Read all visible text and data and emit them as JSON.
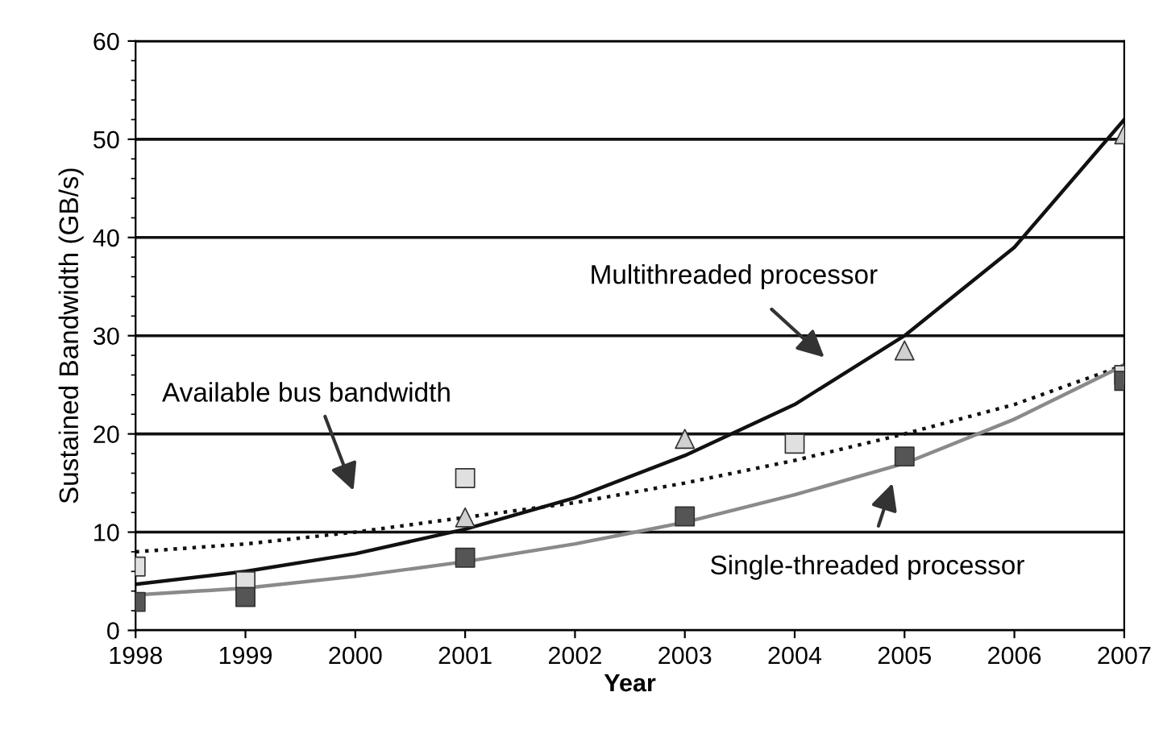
{
  "chart_data": {
    "type": "scatter",
    "xlabel": "Year",
    "ylabel": "Sustained Bandwidth (GB/s)",
    "xlim": [
      1998,
      2007
    ],
    "xticks": [
      1998,
      1999,
      2000,
      2001,
      2002,
      2003,
      2004,
      2005,
      2006,
      2007
    ],
    "ylim": [
      0,
      60
    ],
    "yticks": [
      0,
      10,
      20,
      30,
      40,
      50,
      60
    ],
    "grid": "y",
    "series": [
      {
        "marker": "triangle",
        "color": "#d0d0d0",
        "x": [
          2001,
          2003,
          2005,
          2007
        ],
        "values": [
          11.5,
          19.5,
          28.5,
          50.5
        ]
      },
      {
        "marker": "square",
        "color": "#e0e0e0",
        "x": [
          1998,
          1999,
          2001,
          2004,
          2007
        ],
        "values": [
          6.5,
          5,
          15.5,
          19,
          26
        ]
      },
      {
        "marker": "square",
        "color": "#555555",
        "x": [
          1998,
          1999,
          2001,
          2003,
          2005,
          2007
        ],
        "values": [
          2.9,
          3.4,
          7.4,
          11.6,
          17.7,
          25.4
        ]
      },
      {
        "type": "line",
        "line_style": "solid",
        "color": "#111111",
        "x": [
          1998,
          1999,
          2000,
          2001,
          2002,
          2003,
          2004,
          2005,
          2006,
          2007
        ],
        "values": [
          4.7,
          6,
          7.8,
          10.3,
          13.5,
          17.8,
          23,
          30,
          39,
          52
        ]
      },
      {
        "type": "line",
        "line_style": "dotted",
        "color": "#111111",
        "x": [
          1998,
          1999,
          2000,
          2001,
          2002,
          2003,
          2004,
          2005,
          2006,
          2007
        ],
        "values": [
          8,
          8.8,
          10,
          11.5,
          13,
          15,
          17.3,
          20,
          23,
          27
        ]
      },
      {
        "type": "line",
        "line_style": "solid",
        "color": "#8a8a8a",
        "x": [
          1998,
          1999,
          2000,
          2001,
          2002,
          2003,
          2004,
          2005,
          2006,
          2007
        ],
        "values": [
          3.6,
          4.3,
          5.5,
          7,
          8.8,
          11,
          13.8,
          17,
          21.5,
          27
        ]
      }
    ],
    "annotations": [
      "Multithreaded processor",
      "Available bus bandwidth",
      "Single-threaded processor"
    ]
  }
}
